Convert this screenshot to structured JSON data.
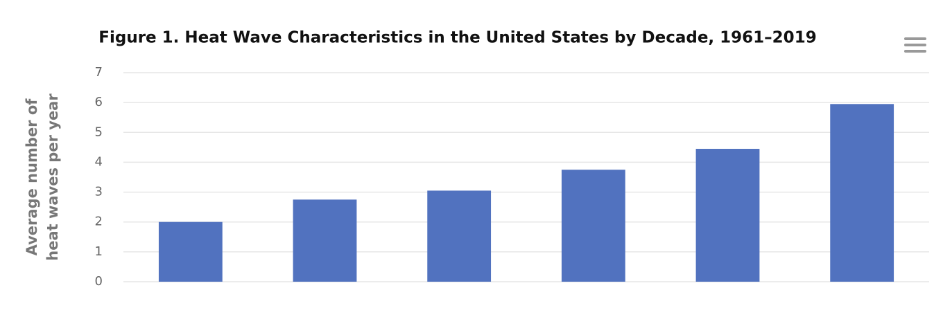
{
  "chart_data": {
    "type": "bar",
    "title": "Figure 1. Heat Wave Characteristics in the United States by Decade, 1961–2019",
    "y_label": [
      "Average number of",
      "heat waves per year"
    ],
    "categories": [
      null,
      null,
      null,
      null,
      null,
      null
    ],
    "values": [
      2.0,
      2.75,
      3.05,
      3.75,
      4.45,
      5.95
    ],
    "color": "#5172bf",
    "ylim": [
      0,
      7
    ],
    "yticks": [
      0,
      1,
      2,
      3,
      4,
      5,
      6,
      7
    ],
    "grid": true
  }
}
